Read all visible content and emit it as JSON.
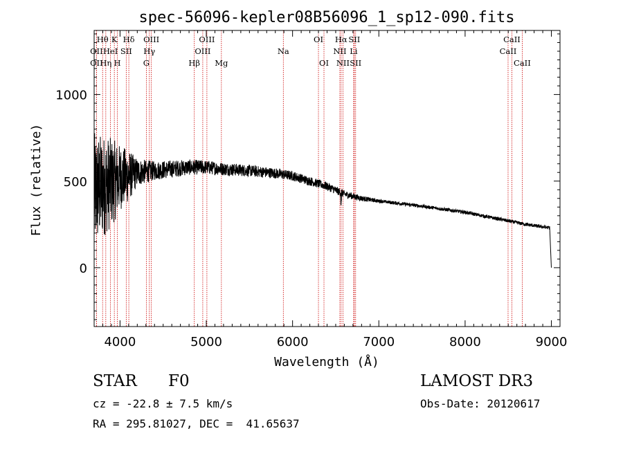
{
  "chart_data": {
    "type": "line",
    "title": "spec-56096-kepler08B56096_1_sp12-090.fits",
    "xlabel": "Wavelength (Å)",
    "ylabel": "Flux (relative)",
    "xlim": [
      3700,
      9100
    ],
    "ylim": [
      -340,
      1370
    ],
    "xticks": [
      4000,
      5000,
      6000,
      7000,
      8000,
      9000
    ],
    "xtick_labels": [
      "4000",
      "5000",
      "6000",
      "7000",
      "8000",
      "9000"
    ],
    "yticks": [
      0,
      500,
      1000
    ],
    "ytick_labels": [
      "0",
      "500",
      "1000"
    ],
    "series": [
      {
        "name": "spectrum",
        "continuum_points": [
          [
            3700,
            440
          ],
          [
            3800,
            470
          ],
          [
            3900,
            490
          ],
          [
            4000,
            520
          ],
          [
            4100,
            530
          ],
          [
            4200,
            550
          ],
          [
            4400,
            560
          ],
          [
            4600,
            570
          ],
          [
            4800,
            580
          ],
          [
            5000,
            580
          ],
          [
            5200,
            570
          ],
          [
            5500,
            560
          ],
          [
            5800,
            545
          ],
          [
            6000,
            530
          ],
          [
            6200,
            500
          ],
          [
            6400,
            470
          ],
          [
            6600,
            425
          ],
          [
            6800,
            400
          ],
          [
            7000,
            385
          ],
          [
            7500,
            355
          ],
          [
            8000,
            320
          ],
          [
            8500,
            270
          ],
          [
            8700,
            250
          ],
          [
            8980,
            230
          ]
        ],
        "noise_profile": [
          [
            3700,
            340
          ],
          [
            3900,
            260
          ],
          [
            4000,
            190
          ],
          [
            4100,
            150
          ],
          [
            4200,
            80
          ],
          [
            4400,
            55
          ],
          [
            5000,
            40
          ],
          [
            6000,
            28
          ],
          [
            6600,
            22
          ],
          [
            7000,
            10
          ],
          [
            9000,
            10
          ]
        ],
        "final_drop": [
          9000,
          0
        ]
      }
    ],
    "spectral_lines": [
      {
        "label": "Hθ",
        "wavelength": 3798,
        "row": 0
      },
      {
        "label": "OII",
        "wavelength": 3727,
        "row": 1
      },
      {
        "label": "OII",
        "wavelength": 3727,
        "row": 2
      },
      {
        "label": "K",
        "wavelength": 3934,
        "row": 0
      },
      {
        "label": "HeI",
        "wavelength": 3889,
        "row": 1
      },
      {
        "label": "Hη",
        "wavelength": 3835,
        "row": 2
      },
      {
        "label": "Hδ",
        "wavelength": 4102,
        "row": 0
      },
      {
        "label": "SII",
        "wavelength": 4072,
        "row": 1
      },
      {
        "label": "H",
        "wavelength": 3969,
        "row": 2
      },
      {
        "label": "OIII",
        "wavelength": 4363,
        "row": 0
      },
      {
        "label": "Hγ",
        "wavelength": 4340,
        "row": 1
      },
      {
        "label": "G",
        "wavelength": 4305,
        "row": 2
      },
      {
        "label": "OIII",
        "wavelength": 5007,
        "row": 0
      },
      {
        "label": "OIII",
        "wavelength": 4959,
        "row": 1
      },
      {
        "label": "Hβ",
        "wavelength": 4861,
        "row": 2
      },
      {
        "label": "Mg",
        "wavelength": 5175,
        "row": 2
      },
      {
        "label": "Na",
        "wavelength": 5893,
        "row": 1
      },
      {
        "label": "OI",
        "wavelength": 6300,
        "row": 0
      },
      {
        "label": "OI",
        "wavelength": 6364,
        "row": 2
      },
      {
        "label": "Hα",
        "wavelength": 6563,
        "row": 0
      },
      {
        "label": "SII",
        "wavelength": 6716,
        "row": 0
      },
      {
        "label": "NII",
        "wavelength": 6548,
        "row": 1
      },
      {
        "label": "Li",
        "wavelength": 6708,
        "row": 1
      },
      {
        "label": "NII",
        "wavelength": 6584,
        "row": 2
      },
      {
        "label": "SII",
        "wavelength": 6731,
        "row": 2
      },
      {
        "label": "CaII",
        "wavelength": 8542,
        "row": 0
      },
      {
        "label": "CaII",
        "wavelength": 8498,
        "row": 1
      },
      {
        "label": "CaII",
        "wavelength": 8662,
        "row": 2
      }
    ],
    "colors": {
      "spectrum": "#000000",
      "lines": "#cc0000",
      "axes": "#000000"
    }
  },
  "info": {
    "object_class": "STAR",
    "subclass": "F0",
    "survey": "LAMOST DR3",
    "redshift": "cz = -22.8 ± 7.5 km/s",
    "obs_date": "Obs-Date: 20120617",
    "coords": "RA = 295.81027, DEC =  41.65637"
  }
}
